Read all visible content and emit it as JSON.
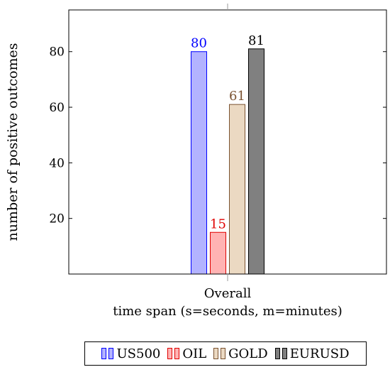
{
  "chart_data": {
    "type": "bar",
    "categories": [
      "Overall"
    ],
    "xlabel": "time span (s=seconds, m=minutes)",
    "ylabel": "number of positive outcomes",
    "ylim": [
      0,
      95
    ],
    "yticks": [
      20,
      40,
      60,
      80
    ],
    "grid": false,
    "legend_position": "bottom",
    "series": [
      {
        "name": "US500",
        "values": [
          80
        ],
        "fill": "#b3b3ff",
        "stroke": "#0000ff",
        "label_color": "#0000ff"
      },
      {
        "name": "OIL",
        "values": [
          15
        ],
        "fill": "#ffb3b3",
        "stroke": "#e00000",
        "label_color": "#e00000"
      },
      {
        "name": "GOLD",
        "values": [
          61
        ],
        "fill": "#ebd9c2",
        "stroke": "#7a5230",
        "label_color": "#7a5230"
      },
      {
        "name": "EURUSD",
        "values": [
          81
        ],
        "fill": "#808080",
        "stroke": "#000000",
        "label_color": "#000000"
      }
    ]
  }
}
